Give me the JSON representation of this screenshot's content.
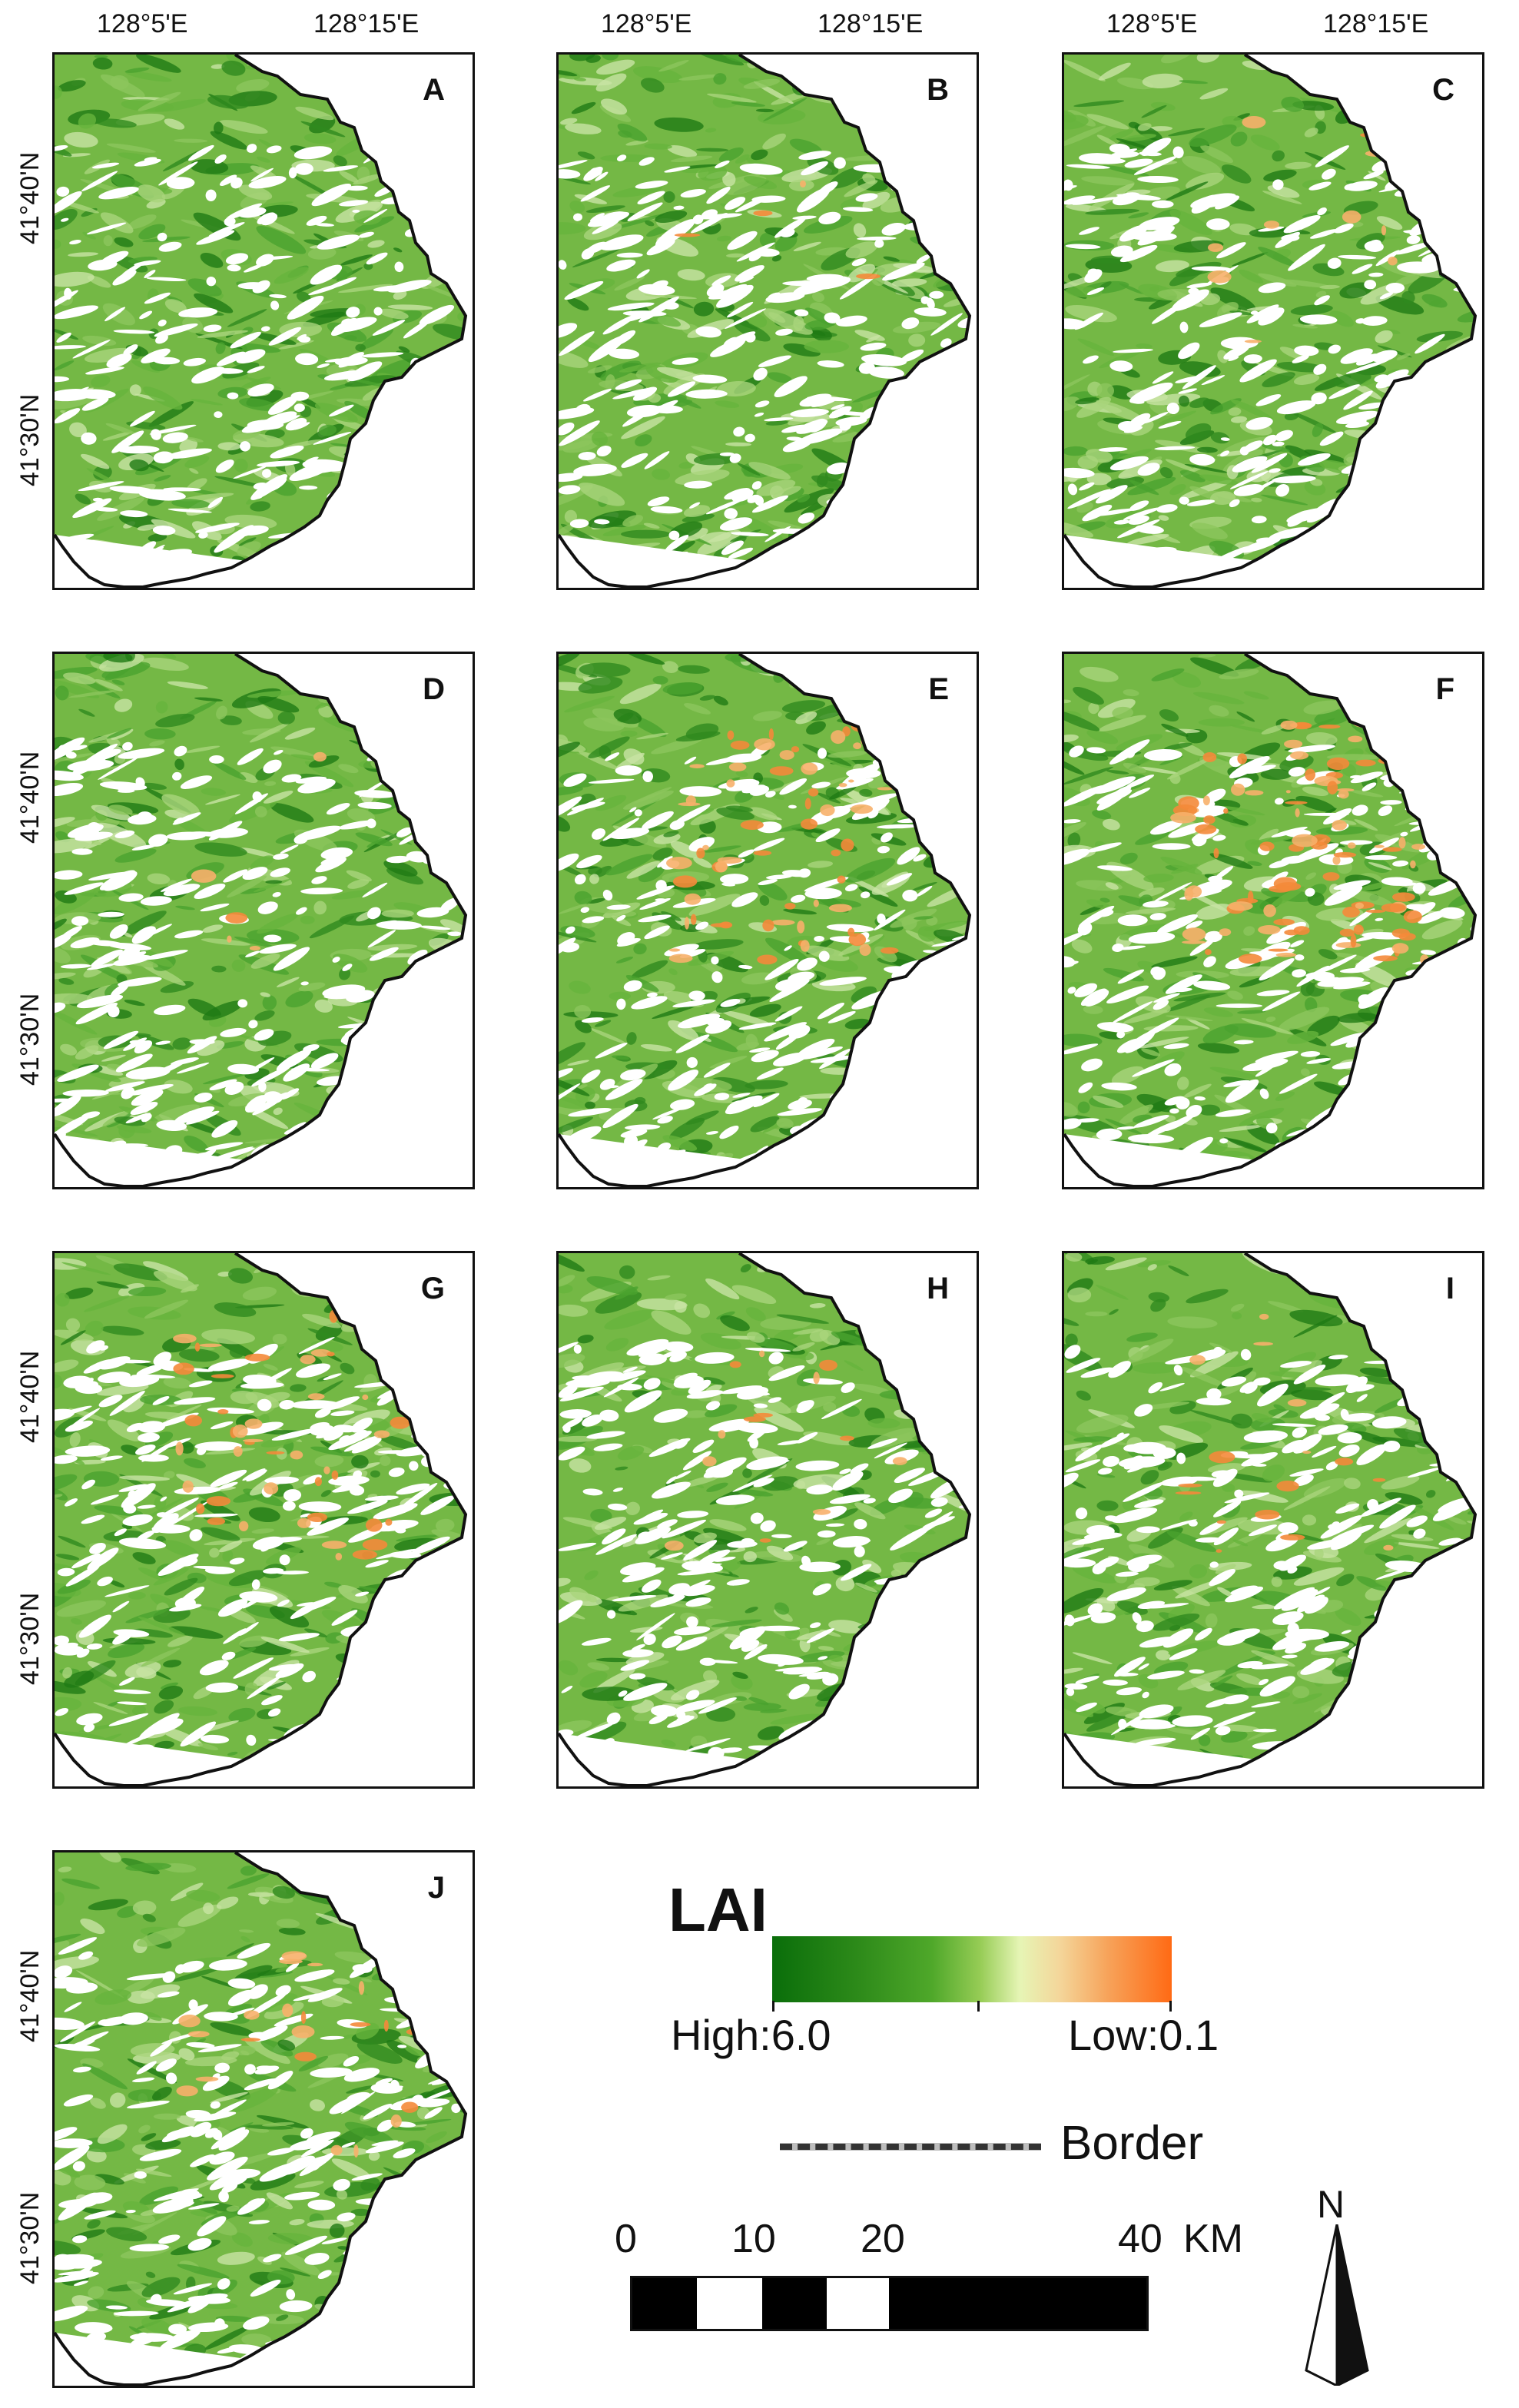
{
  "top_labels": {
    "lon": [
      "128°5'E",
      "128°15'E"
    ]
  },
  "panels": [
    {
      "letter": "A",
      "orange": 0
    },
    {
      "letter": "B",
      "orange": 0.02
    },
    {
      "letter": "C",
      "orange": 0.04
    },
    {
      "letter": "D",
      "orange": 0.02
    },
    {
      "letter": "E",
      "orange": 0.25
    },
    {
      "letter": "F",
      "orange": 0.35
    },
    {
      "letter": "G",
      "orange": 0.18
    },
    {
      "letter": "H",
      "orange": 0.05
    },
    {
      "letter": "I",
      "orange": 0.06
    },
    {
      "letter": "J",
      "orange": 0.08
    }
  ],
  "lat_labels": [
    "41°40'N",
    "41°30'N"
  ],
  "legend": {
    "title": "LAI",
    "high": "High:6.0",
    "low": "Low:0.1",
    "colors": [
      "#0a6e0a",
      "#4fa82a",
      "#e6f5b5",
      "#ff6a14"
    ]
  },
  "border": {
    "label": "Border"
  },
  "scale": {
    "labels": [
      "0",
      "10",
      "20",
      "40"
    ],
    "unit": "KM"
  },
  "north": {
    "label": "N"
  }
}
